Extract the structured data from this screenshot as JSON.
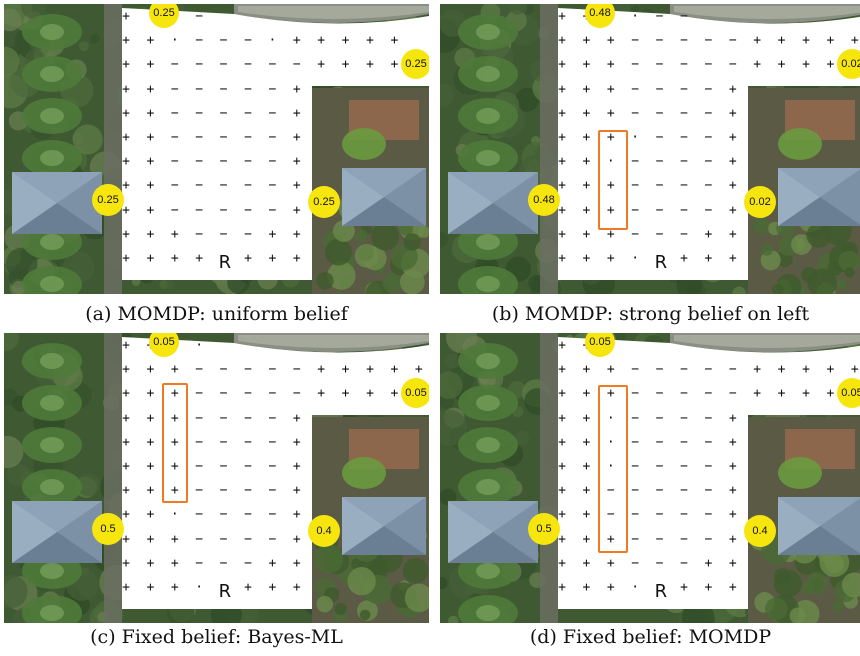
{
  "colors": {
    "belief_badge": "#f7e60e",
    "corridor": "#f07a24",
    "free_space": "#ffffff"
  },
  "robot_label": "R",
  "panels": [
    {
      "caption": "(a) MOMDP: uniform belief",
      "beliefs": {
        "top": "0.25",
        "right_top": "0.25",
        "left": "0.25",
        "right": "0.25"
      },
      "corridor": null
    },
    {
      "caption": "(b) MOMDP: strong belief on left",
      "beliefs": {
        "top": "0.48",
        "right_top": "0.02",
        "left": "0.48",
        "right": "0.02"
      },
      "corridor": "b"
    },
    {
      "caption": "(c) Fixed belief: Bayes-ML",
      "beliefs": {
        "top": "0.05",
        "right_top": "0.05",
        "left": "0.5",
        "right": "0.4"
      },
      "corridor": "c"
    },
    {
      "caption": "(d) Fixed belief: MOMDP",
      "beliefs": {
        "top": "0.05",
        "right_top": "0.05",
        "left": "0.5",
        "right": "0.4"
      },
      "corridor": "d"
    }
  ]
}
